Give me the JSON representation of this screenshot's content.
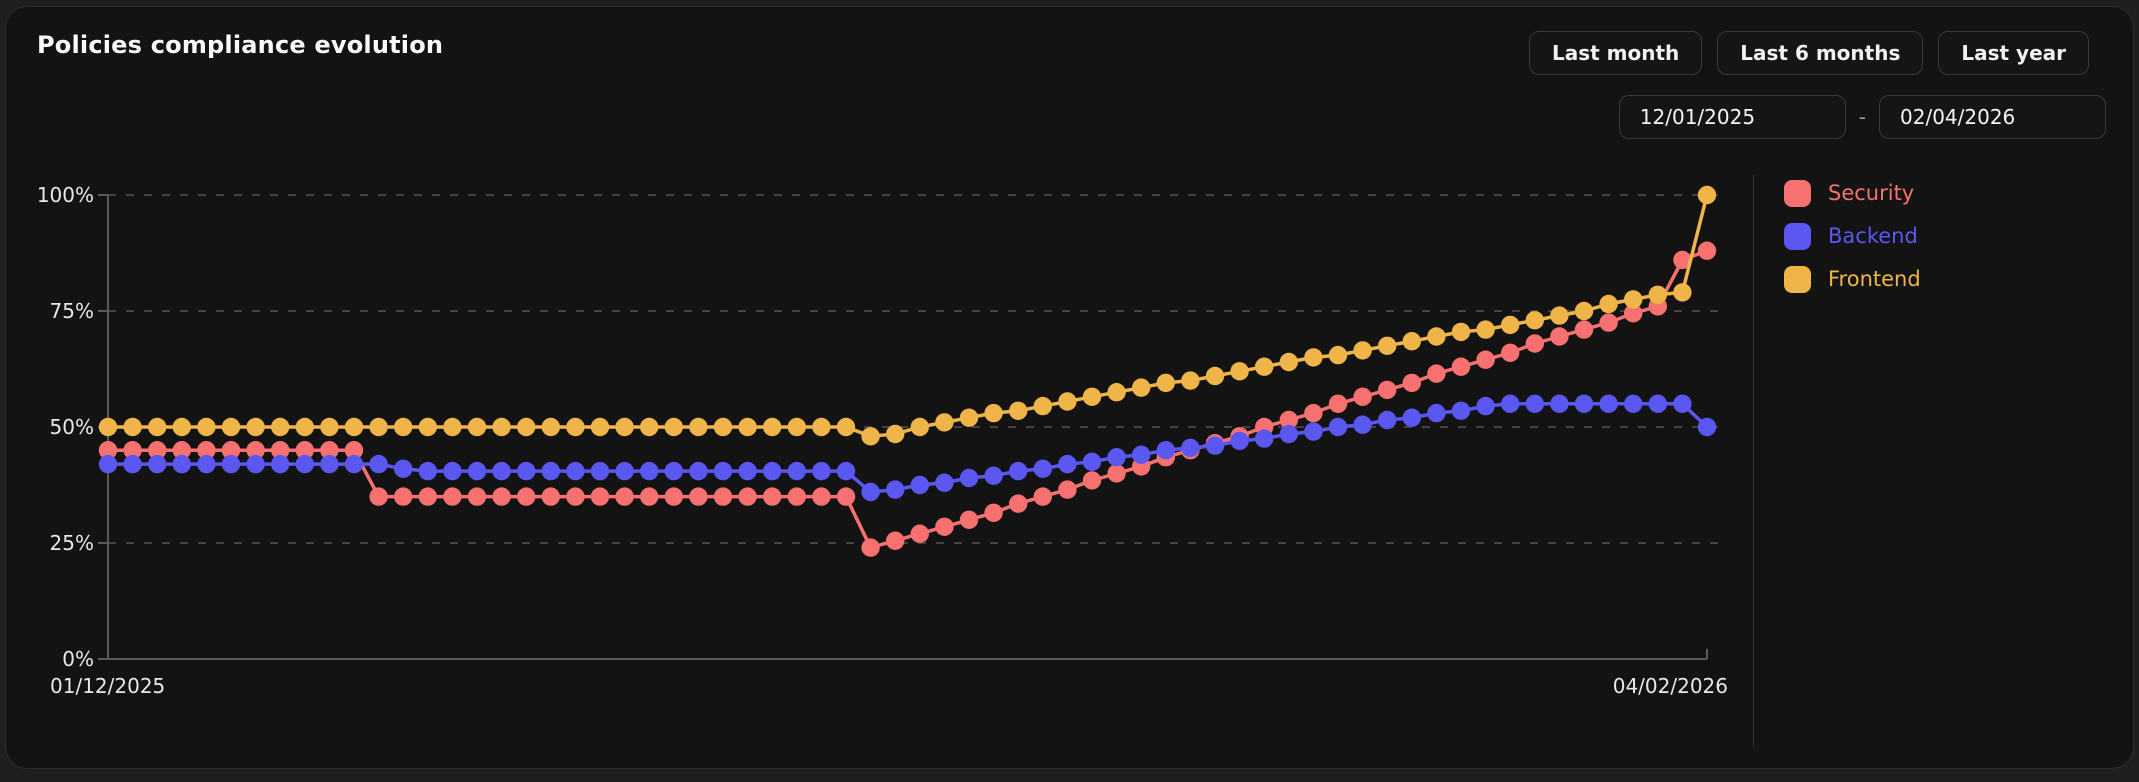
{
  "header": {
    "title": "Policies compliance evolution"
  },
  "controls": {
    "range_buttons": [
      {
        "label": "Last month"
      },
      {
        "label": "Last 6 months"
      },
      {
        "label": "Last year"
      }
    ],
    "date_from": "12/01/2025",
    "date_separator": "-",
    "date_to": "02/04/2026"
  },
  "chart_data": {
    "type": "line",
    "title": "Policies compliance evolution",
    "x_unit": "day",
    "num_points": 66,
    "x_start_label": "01/12/2025",
    "x_end_label": "04/02/2026",
    "ylim": [
      0,
      100
    ],
    "y_tick_values": [
      0,
      25,
      50,
      75,
      100
    ],
    "y_tick_labels": [
      "0%",
      "25%",
      "50%",
      "75%",
      "100%"
    ],
    "grid": "dashed horizontal gridlines",
    "legend_position": "right",
    "colors": {
      "axis": "#5a5a5a",
      "gridline": "#434343",
      "tick_label": "#e8e8e8",
      "background": "#131313"
    },
    "series": [
      {
        "name": "Security",
        "color": "#f87171",
        "values": [
          45,
          45,
          45,
          45,
          45,
          45,
          45,
          45,
          45,
          45,
          45,
          35,
          35,
          35,
          35,
          35,
          35,
          35,
          35,
          35,
          35,
          35,
          35,
          35,
          35,
          35,
          35,
          35,
          35,
          35,
          35,
          24,
          25.5,
          27,
          28.5,
          30,
          31.5,
          33.5,
          35,
          36.5,
          38.5,
          40,
          41.5,
          43.5,
          45,
          46.5,
          48,
          50,
          51.5,
          53,
          55,
          56.5,
          58,
          59.5,
          61.5,
          63,
          64.5,
          66,
          68,
          69.5,
          71,
          72.5,
          74.5,
          76,
          86,
          88
        ]
      },
      {
        "name": "Backend",
        "color": "#5b58f2",
        "values": [
          42,
          42,
          42,
          42,
          42,
          42,
          42,
          42,
          42,
          42,
          42,
          42,
          41,
          40.5,
          40.5,
          40.5,
          40.5,
          40.5,
          40.5,
          40.5,
          40.5,
          40.5,
          40.5,
          40.5,
          40.5,
          40.5,
          40.5,
          40.5,
          40.5,
          40.5,
          40.5,
          36,
          36.5,
          37.5,
          38,
          39,
          39.5,
          40.5,
          41,
          42,
          42.5,
          43.5,
          44,
          45,
          45.5,
          46,
          47,
          47.5,
          48.5,
          49,
          50,
          50.5,
          51.5,
          52,
          53,
          53.5,
          54.5,
          55,
          55,
          55,
          55,
          55,
          55,
          55,
          55,
          50
        ]
      },
      {
        "name": "Frontend",
        "color": "#efb548",
        "values": [
          50,
          50,
          50,
          50,
          50,
          50,
          50,
          50,
          50,
          50,
          50,
          50,
          50,
          50,
          50,
          50,
          50,
          50,
          50,
          50,
          50,
          50,
          50,
          50,
          50,
          50,
          50,
          50,
          50,
          50,
          50,
          48,
          48.5,
          50,
          51,
          52,
          53,
          53.5,
          54.5,
          55.5,
          56.5,
          57.5,
          58.5,
          59.5,
          60,
          61,
          62,
          63,
          64,
          65,
          65.5,
          66.5,
          67.5,
          68.5,
          69.5,
          70.5,
          71,
          72,
          73,
          74,
          75,
          76.5,
          77.5,
          78.5,
          79,
          100
        ]
      }
    ]
  }
}
